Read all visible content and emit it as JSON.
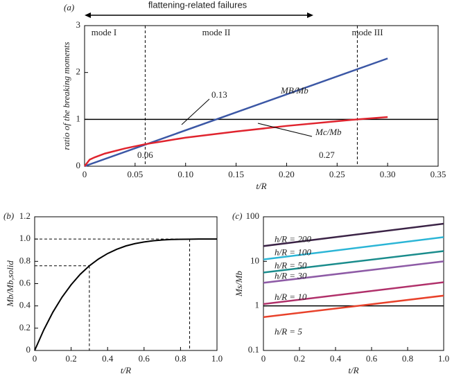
{
  "chart_data": [
    {
      "type": "line",
      "label": "(a)",
      "xlabel": "t/R",
      "ylabel": "ratio of the breaking moments",
      "xlim": [
        0,
        0.35
      ],
      "ylim": [
        0,
        3
      ],
      "xticks": [
        0,
        0.05,
        {
          "value": 0.1,
          "label": "0.10"
        },
        0.15,
        {
          "value": 0.2,
          "label": "0.20"
        },
        0.25,
        {
          "value": 0.3,
          "label": "0.30"
        },
        0.35
      ],
      "yticks": [
        0,
        1,
        2,
        3
      ],
      "hline": 1,
      "vlines": [
        0.06,
        0.27
      ],
      "annotations": [
        "flattening-related failures",
        "mode I",
        "mode II",
        "mode III",
        "0.13",
        "0.06",
        "0.27"
      ],
      "series": [
        {
          "name": "MB/Mb",
          "color": "#3b57a5",
          "x": [
            0,
            0.3
          ],
          "values": [
            0,
            2.3
          ]
        },
        {
          "name": "Mc/Mb",
          "color": "#e0242e",
          "x": [
            0,
            0.005,
            0.01,
            0.02,
            0.04,
            0.06,
            0.08,
            0.1,
            0.15,
            0.2,
            0.25,
            0.27,
            0.3
          ],
          "values": [
            0,
            0.14,
            0.19,
            0.27,
            0.38,
            0.47,
            0.54,
            0.61,
            0.74,
            0.86,
            0.96,
            1.0,
            1.05
          ]
        }
      ]
    },
    {
      "type": "line",
      "label": "(b)",
      "xlabel": "t/R",
      "ylabel": "Mb/Mb,solid",
      "xlim": [
        0,
        1
      ],
      "ylim": [
        0,
        1.2
      ],
      "xticks": [
        0,
        0.2,
        0.4,
        0.6,
        0.8,
        {
          "value": 1,
          "label": "1.0"
        }
      ],
      "yticks": [
        0,
        0.2,
        0.4,
        0.6,
        0.8,
        {
          "value": 1,
          "label": "1.0"
        },
        1.2
      ],
      "guides": [
        [
          0.3,
          0.76
        ],
        [
          0.85,
          1.0
        ]
      ],
      "series": [
        {
          "color": "#000000",
          "x": [
            0,
            0.05,
            0.1,
            0.15,
            0.2,
            0.25,
            0.3,
            0.35,
            0.4,
            0.45,
            0.5,
            0.55,
            0.6,
            0.65,
            0.7,
            0.75,
            0.8,
            0.85,
            0.9,
            0.95,
            1
          ],
          "values": [
            0,
            0.185,
            0.344,
            0.478,
            0.59,
            0.684,
            0.76,
            0.821,
            0.87,
            0.908,
            0.938,
            0.959,
            0.974,
            0.985,
            0.992,
            0.996,
            0.998,
            0.999,
            1.0,
            1.0,
            1.0
          ]
        }
      ]
    },
    {
      "type": "line",
      "label": "(c)",
      "xlabel": "t/R",
      "ylabel": "Ms/Mb",
      "log_y": true,
      "xlim": [
        0,
        1
      ],
      "ylim": [
        0.1,
        100
      ],
      "xticks": [
        0,
        0.2,
        0.4,
        0.6,
        0.8,
        {
          "value": 1,
          "label": "1.0"
        }
      ],
      "yticks": [
        0.1,
        1,
        10,
        100
      ],
      "hline": 1,
      "series": [
        {
          "name": "h/R = 200",
          "color": "#3b2346",
          "x": [
            0,
            1
          ],
          "values": [
            22,
            70
          ]
        },
        {
          "name": "h/R = 100",
          "color": "#2bb5d6",
          "x": [
            0,
            1
          ],
          "values": [
            11,
            35
          ]
        },
        {
          "name": "h/R = 50",
          "color": "#1a8c8c",
          "x": [
            0,
            1
          ],
          "values": [
            5.6,
            17
          ]
        },
        {
          "name": "h/R = 30",
          "color": "#8e5ba6",
          "x": [
            0,
            1
          ],
          "values": [
            3.3,
            10
          ]
        },
        {
          "name": "h/R = 10",
          "color": "#b0306a",
          "x": [
            0,
            1
          ],
          "values": [
            1.1,
            3.4
          ]
        },
        {
          "name": "h/R = 5",
          "color": "#e8412a",
          "x": [
            0,
            1
          ],
          "values": [
            0.56,
            1.7
          ]
        }
      ]
    }
  ]
}
